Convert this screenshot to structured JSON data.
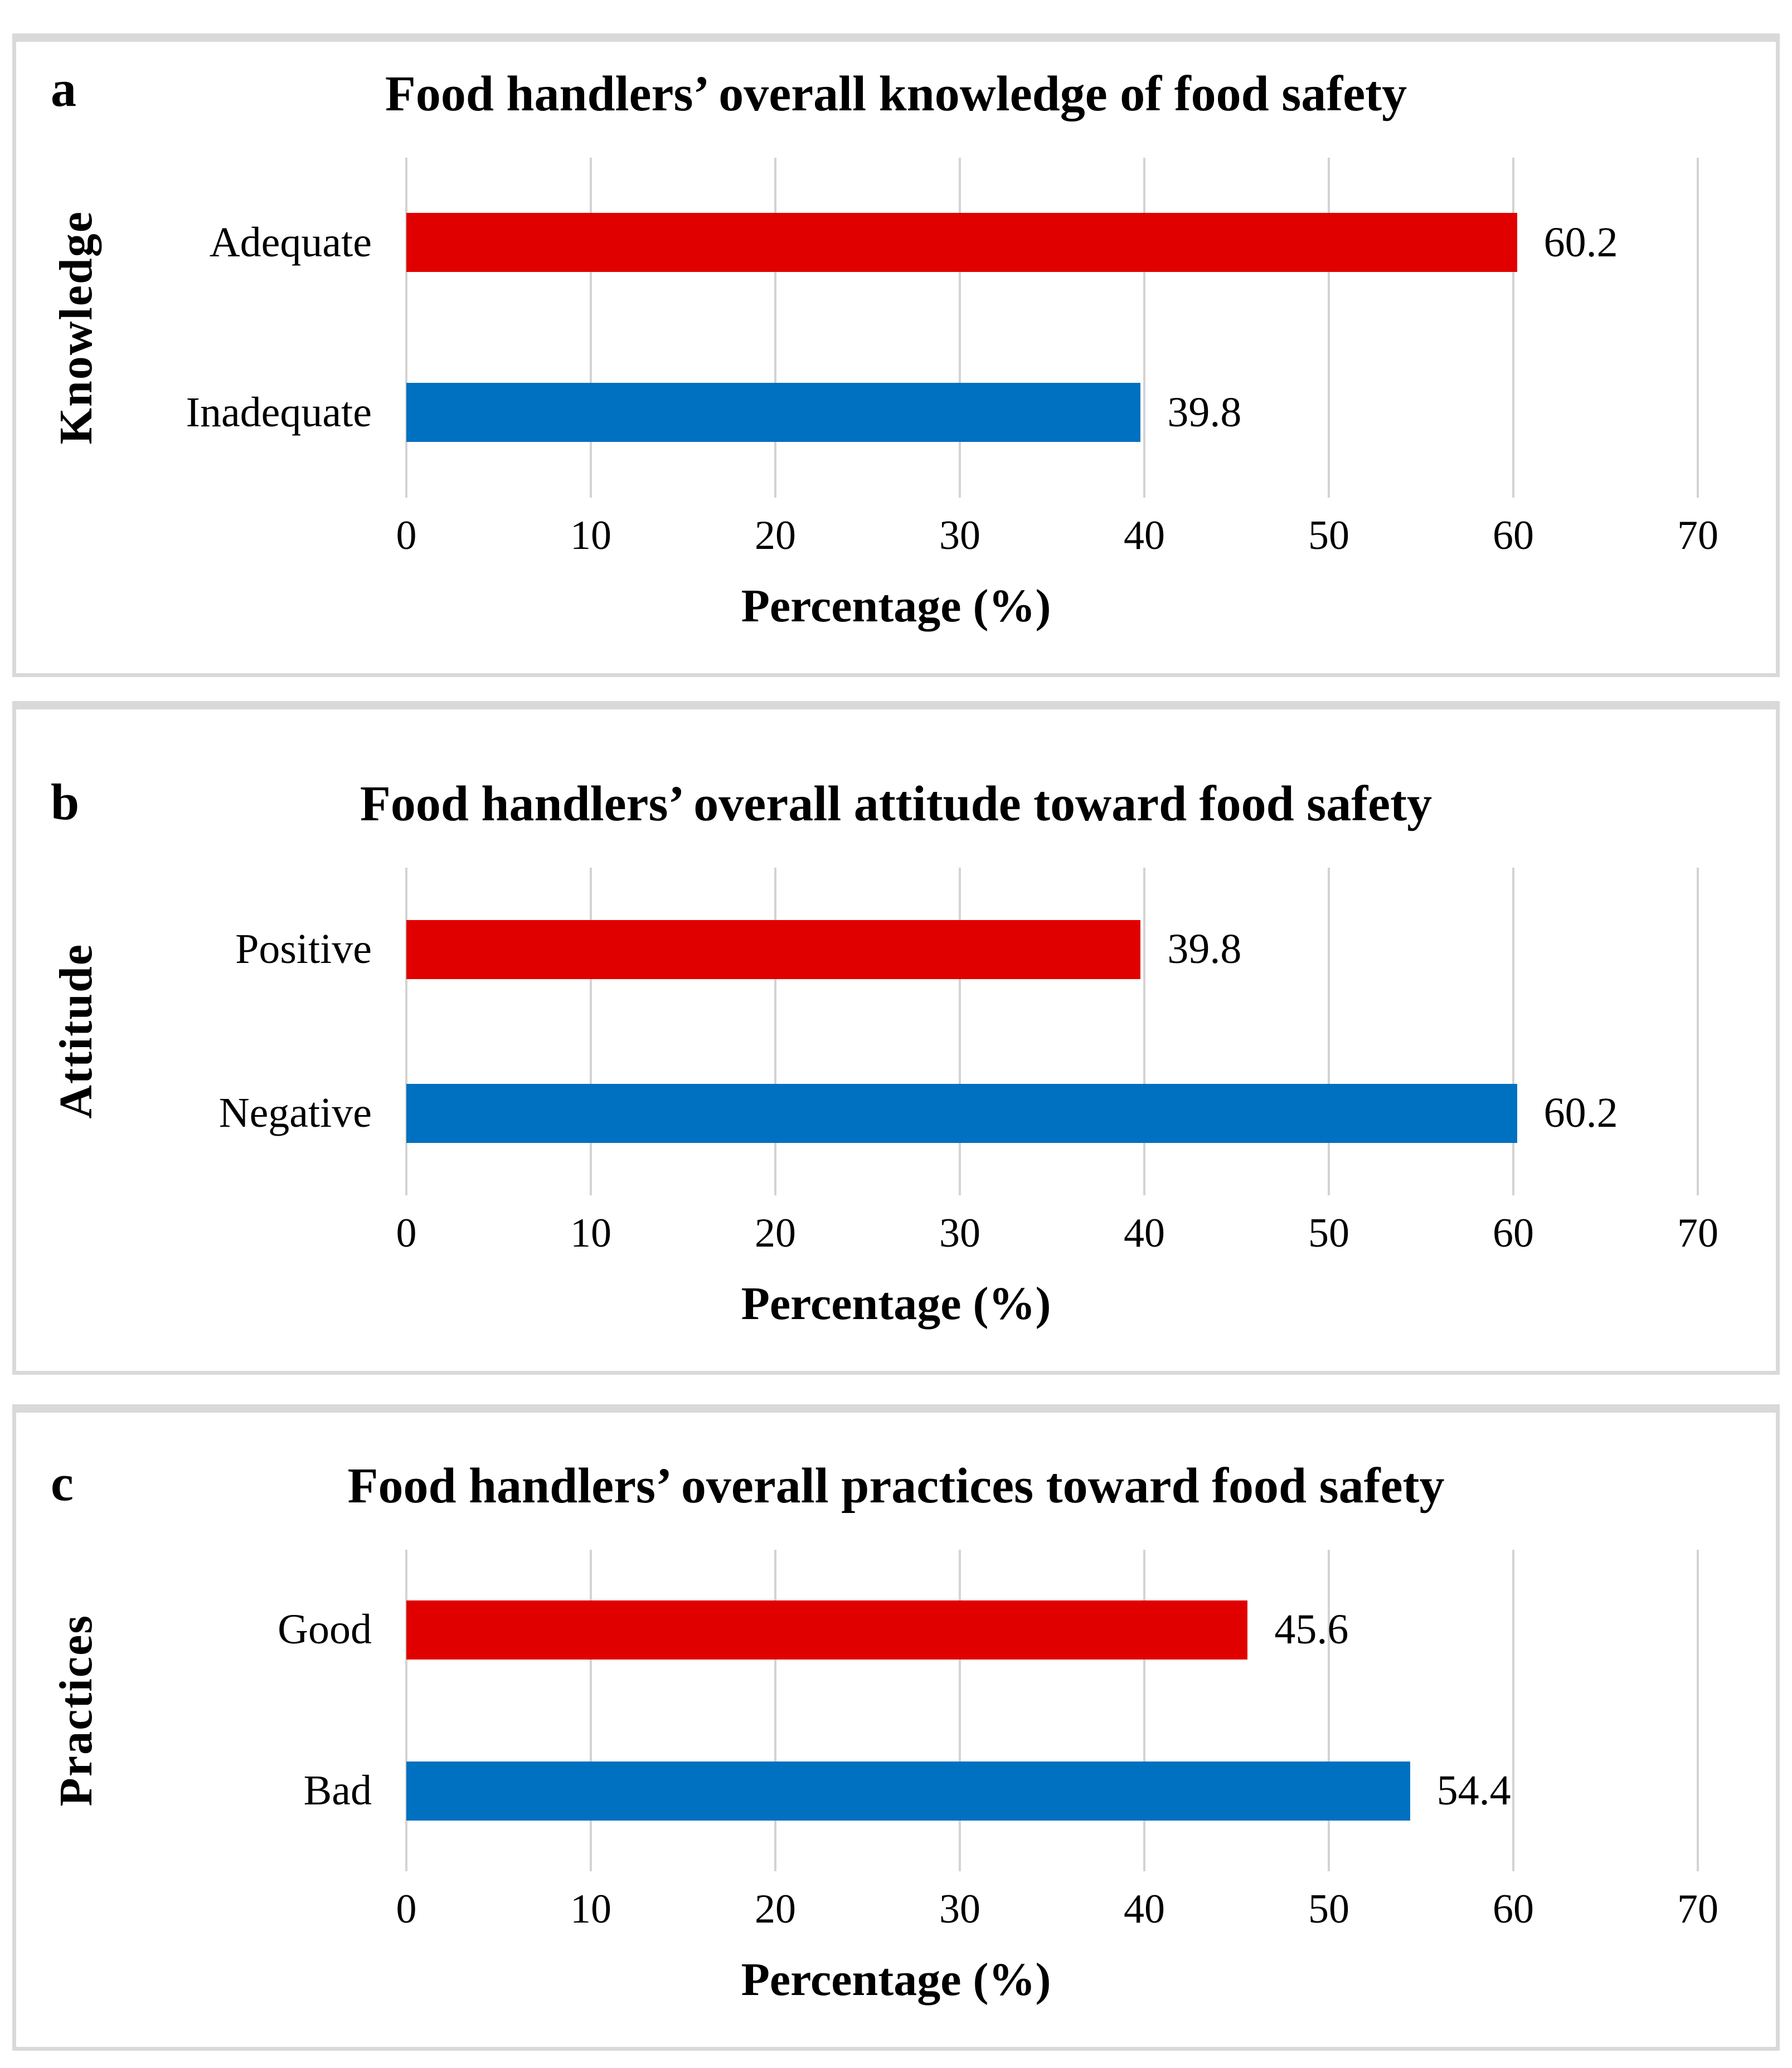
{
  "figure": {
    "panel_letters": [
      "a",
      "b",
      "c"
    ],
    "colors": {
      "bar_red": "#e00000",
      "bar_blue": "#0070c0",
      "gridline": "#d3d3d3",
      "panel_border": "#d9d9d9"
    }
  },
  "chart_data": [
    {
      "type": "bar",
      "orientation": "horizontal",
      "panel_label": "a",
      "title": "Food handlers’ overall knowledge of food safety",
      "ylabel": "Knowledge",
      "xlabel": "Percentage (%)",
      "categories": [
        "Adequate",
        "Inadequate"
      ],
      "values": [
        60.2,
        39.8
      ],
      "value_labels": [
        "60.2",
        "39.8"
      ],
      "bar_colors": [
        "#e00000",
        "#0070c0"
      ],
      "xticks": [
        0,
        10,
        20,
        30,
        40,
        50,
        60,
        70
      ],
      "xlim": [
        0,
        70
      ],
      "grid": true,
      "legend": "none"
    },
    {
      "type": "bar",
      "orientation": "horizontal",
      "panel_label": "b",
      "title": "Food handlers’ overall attitude toward food safety",
      "ylabel": "Attitude",
      "xlabel": "Percentage (%)",
      "categories": [
        "Positive",
        "Negative"
      ],
      "values": [
        39.8,
        60.2
      ],
      "value_labels": [
        "39.8",
        "60.2"
      ],
      "bar_colors": [
        "#e00000",
        "#0070c0"
      ],
      "xticks": [
        0,
        10,
        20,
        30,
        40,
        50,
        60,
        70
      ],
      "xlim": [
        0,
        70
      ],
      "grid": true,
      "legend": "none"
    },
    {
      "type": "bar",
      "orientation": "horizontal",
      "panel_label": "c",
      "title": "Food handlers’ overall practices toward food safety",
      "ylabel": "Practices",
      "xlabel": "Percentage (%)",
      "categories": [
        "Good",
        "Bad"
      ],
      "values": [
        45.6,
        54.4
      ],
      "value_labels": [
        "45.6",
        "54.4"
      ],
      "bar_colors": [
        "#e00000",
        "#0070c0"
      ],
      "xticks": [
        0,
        10,
        20,
        30,
        40,
        50,
        60,
        70
      ],
      "xlim": [
        0,
        70
      ],
      "grid": true,
      "legend": "none"
    }
  ]
}
